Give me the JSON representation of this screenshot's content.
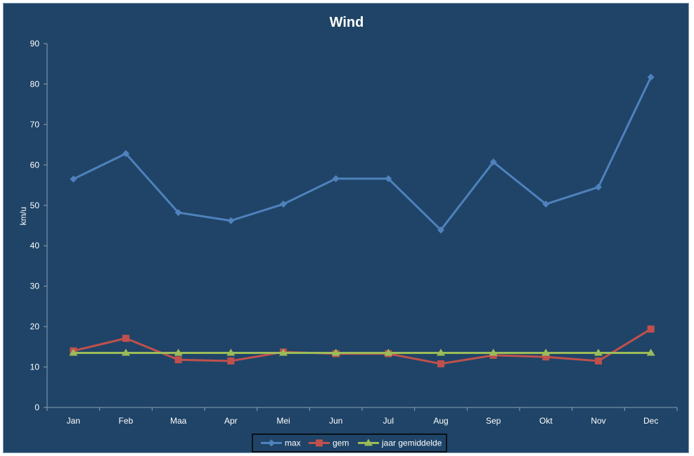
{
  "chart_data": {
    "type": "line",
    "title": "Wind",
    "xlabel": "",
    "ylabel": "km/u",
    "categories": [
      "Jan",
      "Feb",
      "Maa",
      "Apr",
      "Mei",
      "Jun",
      "Jul",
      "Aug",
      "Sep",
      "Okt",
      "Nov",
      "Dec"
    ],
    "ylim": [
      0,
      90
    ],
    "yticks": [
      0,
      10,
      20,
      30,
      40,
      50,
      60,
      70,
      80,
      90
    ],
    "grid": false,
    "legend_position": "bottom",
    "series": [
      {
        "name": "max",
        "color": "#4f81bd",
        "marker": "diamond",
        "values": [
          56.5,
          62.8,
          48.2,
          46.2,
          50.3,
          56.6,
          56.6,
          43.9,
          60.7,
          50.3,
          54.5,
          81.7
        ]
      },
      {
        "name": "gem",
        "color": "#c0504d",
        "marker": "square",
        "values": [
          14.0,
          17.1,
          11.8,
          11.5,
          13.7,
          13.3,
          13.3,
          10.8,
          12.9,
          12.5,
          11.5,
          19.4
        ]
      },
      {
        "name": "jaar gemiddelde",
        "color": "#9bbb59",
        "marker": "triangle",
        "values": [
          13.5,
          13.5,
          13.5,
          13.5,
          13.5,
          13.5,
          13.5,
          13.5,
          13.5,
          13.5,
          13.5,
          13.5
        ]
      }
    ]
  },
  "colors": {
    "background": "#1f4467",
    "axis": "#8aa0b4",
    "text": "#ffffff"
  }
}
